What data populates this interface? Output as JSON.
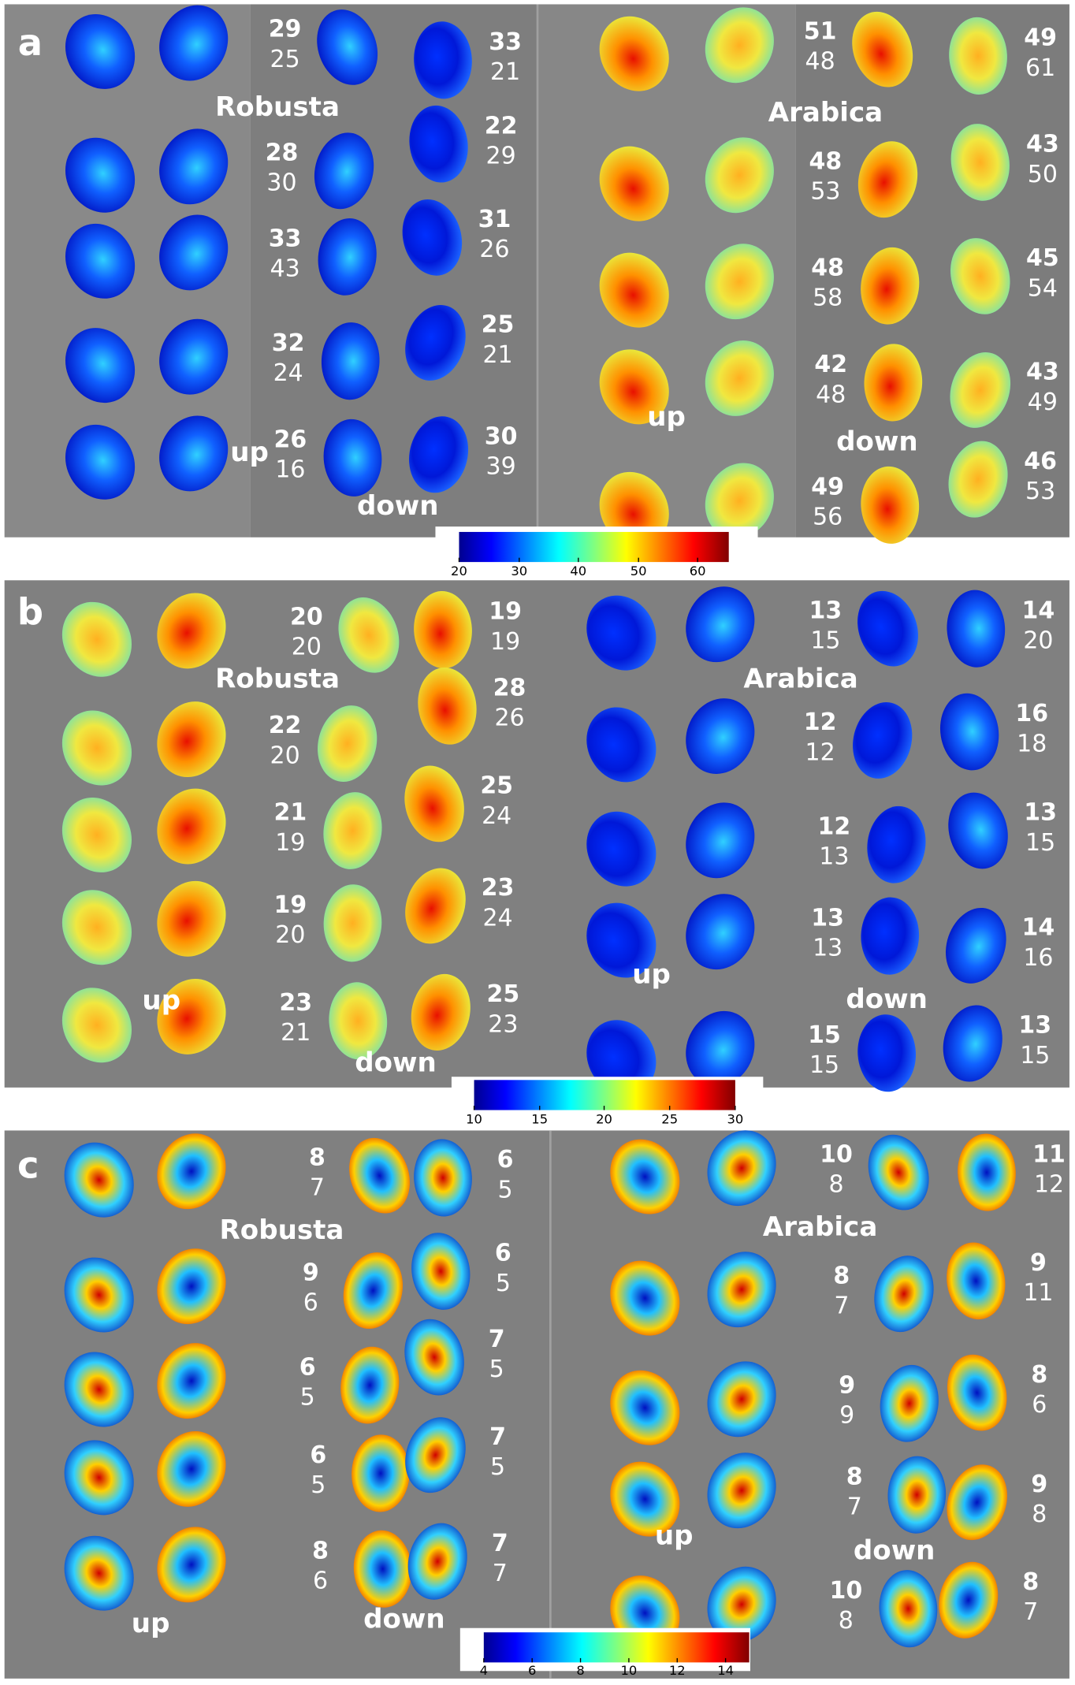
{
  "panels": [
    {
      "letter": "a",
      "robusta": {
        "label": "Robusta",
        "up": "up",
        "down": "down",
        "pairs": [
          [
            29,
            25
          ],
          [
            33,
            21
          ],
          [
            28,
            30
          ],
          [
            22,
            29
          ],
          [
            33,
            43
          ],
          [
            31,
            26
          ],
          [
            32,
            24
          ],
          [
            25,
            21
          ],
          [
            26,
            16
          ],
          [
            30,
            39
          ]
        ]
      },
      "arabica": {
        "label": "Arabica",
        "up": "up",
        "down": "down",
        "pairs": [
          [
            51,
            48
          ],
          [
            49,
            61
          ],
          [
            48,
            53
          ],
          [
            43,
            50
          ],
          [
            48,
            58
          ],
          [
            45,
            54
          ],
          [
            42,
            48
          ],
          [
            43,
            49
          ],
          [
            49,
            56
          ],
          [
            46,
            53
          ]
        ]
      },
      "colorbar": {
        "ticks": [
          20,
          30,
          40,
          50,
          60
        ]
      }
    },
    {
      "letter": "b",
      "robusta": {
        "label": "Robusta",
        "up": "up",
        "down": "down",
        "pairs": [
          [
            20,
            20
          ],
          [
            19,
            19
          ],
          [
            22,
            20
          ],
          [
            28,
            26
          ],
          [
            21,
            19
          ],
          [
            25,
            24
          ],
          [
            19,
            20
          ],
          [
            23,
            24
          ],
          [
            23,
            21
          ],
          [
            25,
            23
          ]
        ]
      },
      "arabica": {
        "label": "Arabica",
        "up": "up",
        "down": "down",
        "pairs": [
          [
            13,
            15
          ],
          [
            14,
            20
          ],
          [
            12,
            12
          ],
          [
            16,
            18
          ],
          [
            12,
            13
          ],
          [
            13,
            15
          ],
          [
            13,
            13
          ],
          [
            14,
            16
          ],
          [
            15,
            15
          ],
          [
            13,
            15
          ]
        ]
      },
      "colorbar": {
        "ticks": [
          10,
          15,
          20,
          25,
          30
        ]
      }
    },
    {
      "letter": "c",
      "robusta": {
        "label": "Robusta",
        "up": "up",
        "down": "down",
        "pairs": [
          [
            8,
            7
          ],
          [
            6,
            5
          ],
          [
            9,
            6
          ],
          [
            6,
            5
          ],
          [
            6,
            5
          ],
          [
            7,
            5
          ],
          [
            6,
            5
          ],
          [
            7,
            5
          ],
          [
            8,
            6
          ],
          [
            7,
            7
          ]
        ]
      },
      "arabica": {
        "label": "Arabica",
        "up": "up",
        "down": "down",
        "pairs": [
          [
            10,
            8
          ],
          [
            11,
            12
          ],
          [
            8,
            7
          ],
          [
            9,
            11
          ],
          [
            9,
            9
          ],
          [
            8,
            6
          ],
          [
            8,
            7
          ],
          [
            9,
            8
          ],
          [
            10,
            8
          ],
          [
            8,
            7
          ]
        ]
      },
      "colorbar": {
        "ticks": [
          4,
          6,
          8,
          10,
          12,
          14
        ]
      }
    }
  ]
}
